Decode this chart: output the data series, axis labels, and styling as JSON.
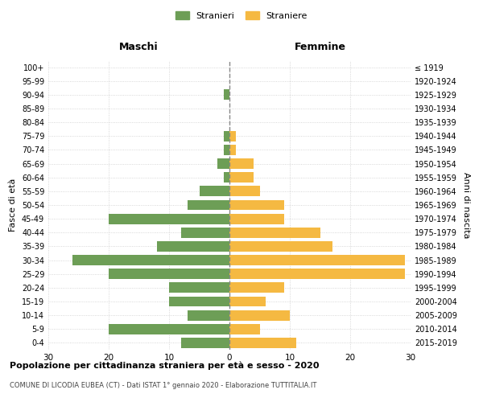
{
  "age_groups": [
    "0-4",
    "5-9",
    "10-14",
    "15-19",
    "20-24",
    "25-29",
    "30-34",
    "35-39",
    "40-44",
    "45-49",
    "50-54",
    "55-59",
    "60-64",
    "65-69",
    "70-74",
    "75-79",
    "80-84",
    "85-89",
    "90-94",
    "95-99",
    "100+"
  ],
  "birth_years": [
    "2015-2019",
    "2010-2014",
    "2005-2009",
    "2000-2004",
    "1995-1999",
    "1990-1994",
    "1985-1989",
    "1980-1984",
    "1975-1979",
    "1970-1974",
    "1965-1969",
    "1960-1964",
    "1955-1959",
    "1950-1954",
    "1945-1949",
    "1940-1944",
    "1935-1939",
    "1930-1934",
    "1925-1929",
    "1920-1924",
    "≤ 1919"
  ],
  "males": [
    8,
    20,
    7,
    10,
    10,
    20,
    26,
    12,
    8,
    20,
    7,
    5,
    1,
    2,
    1,
    1,
    0,
    0,
    1,
    0,
    0
  ],
  "females": [
    11,
    5,
    10,
    6,
    9,
    29,
    29,
    17,
    15,
    9,
    9,
    5,
    4,
    4,
    1,
    1,
    0,
    0,
    0,
    0,
    0
  ],
  "male_color": "#6d9e56",
  "female_color": "#f5b942",
  "background_color": "#ffffff",
  "grid_color": "#cccccc",
  "title": "Popolazione per cittadinanza straniera per età e sesso - 2020",
  "subtitle": "COMUNE DI LICODIA EUBEA (CT) - Dati ISTAT 1° gennaio 2020 - Elaborazione TUTTITALIA.IT",
  "xlabel_left": "Maschi",
  "xlabel_right": "Femmine",
  "ylabel_left": "Fasce di età",
  "ylabel_right": "Anni di nascita",
  "legend_males": "Stranieri",
  "legend_females": "Straniere",
  "xlim": 30
}
